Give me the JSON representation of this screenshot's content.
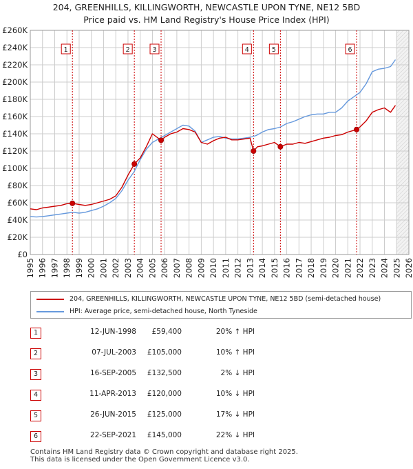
{
  "title_line1": "204, GREENHILLS, KILLINGWORTH, NEWCASTLE UPON TYNE, NE12 5BD",
  "title_line2": "Price paid vs. HM Land Registry's House Price Index (HPI)",
  "colors": {
    "property": "#cc0000",
    "hpi": "#6699dd",
    "marker": "#cc0000",
    "grid": "#cccccc",
    "vline": "#cc0000"
  },
  "chart_data": {
    "type": "line",
    "title": "Price paid vs. HM Land Registry's House Price Index (HPI)",
    "xlabel": "",
    "ylabel": "",
    "xlim": [
      1995,
      2026
    ],
    "ylim": [
      0,
      260000
    ],
    "y_ticks": [
      0,
      20000,
      40000,
      60000,
      80000,
      100000,
      120000,
      140000,
      160000,
      180000,
      200000,
      220000,
      240000,
      260000
    ],
    "y_tick_labels": [
      "£0",
      "£20K",
      "£40K",
      "£60K",
      "£80K",
      "£100K",
      "£120K",
      "£140K",
      "£160K",
      "£180K",
      "£200K",
      "£220K",
      "£240K",
      "£260K"
    ],
    "x_ticks": [
      1995,
      1996,
      1997,
      1998,
      1999,
      2000,
      2001,
      2002,
      2003,
      2004,
      2005,
      2006,
      2007,
      2008,
      2009,
      2010,
      2011,
      2012,
      2013,
      2014,
      2015,
      2016,
      2017,
      2018,
      2019,
      2020,
      2021,
      2022,
      2023,
      2024,
      2025,
      2026
    ],
    "forecast_start": 2025.0,
    "series": [
      {
        "name": "204, GREENHILLS, KILLINGWORTH, NEWCASTLE UPON TYNE, NE12 5BD (semi-detached house)",
        "color": "#cc0000",
        "x": [
          1995.0,
          1995.5,
          1996.0,
          1996.5,
          1997.0,
          1997.5,
          1998.0,
          1998.45,
          1999.0,
          1999.5,
          2000.0,
          2000.5,
          2001.0,
          2001.5,
          2002.0,
          2002.5,
          2003.0,
          2003.52,
          2004.0,
          2004.5,
          2005.0,
          2005.71,
          2006.0,
          2006.5,
          2007.0,
          2007.5,
          2008.0,
          2008.5,
          2009.0,
          2009.5,
          2010.0,
          2010.5,
          2011.0,
          2011.5,
          2012.0,
          2012.5,
          2013.0,
          2013.28,
          2013.6,
          2014.0,
          2014.5,
          2015.0,
          2015.48,
          2016.0,
          2016.5,
          2017.0,
          2017.5,
          2018.0,
          2018.5,
          2019.0,
          2019.5,
          2020.0,
          2020.5,
          2021.0,
          2021.72,
          2022.0,
          2022.5,
          2023.0,
          2023.5,
          2024.0,
          2024.5,
          2024.9
        ],
        "values": [
          53000,
          52000,
          54000,
          55000,
          56000,
          57000,
          59000,
          59400,
          58000,
          57000,
          58000,
          60000,
          62000,
          64000,
          68000,
          78000,
          92000,
          105000,
          112000,
          125000,
          140000,
          132500,
          136000,
          140000,
          142000,
          146000,
          145000,
          142000,
          130000,
          128000,
          132000,
          135000,
          136000,
          133000,
          133000,
          134000,
          135000,
          120000,
          125000,
          126000,
          128000,
          130000,
          125000,
          128000,
          128000,
          130000,
          129000,
          131000,
          133000,
          135000,
          136000,
          138000,
          139000,
          142000,
          145000,
          148000,
          155000,
          165000,
          168000,
          170000,
          165000,
          173000
        ]
      },
      {
        "name": "HPI: Average price, semi-detached house, North Tyneside",
        "color": "#6699dd",
        "x": [
          1995.0,
          1995.5,
          1996.0,
          1996.5,
          1997.0,
          1997.5,
          1998.0,
          1998.5,
          1999.0,
          1999.5,
          2000.0,
          2000.5,
          2001.0,
          2001.5,
          2002.0,
          2002.5,
          2003.0,
          2003.5,
          2004.0,
          2004.5,
          2005.0,
          2005.5,
          2006.0,
          2006.5,
          2007.0,
          2007.5,
          2008.0,
          2008.5,
          2009.0,
          2009.5,
          2010.0,
          2010.5,
          2011.0,
          2011.5,
          2012.0,
          2012.5,
          2013.0,
          2013.5,
          2014.0,
          2014.5,
          2015.0,
          2015.5,
          2016.0,
          2016.5,
          2017.0,
          2017.5,
          2018.0,
          2018.5,
          2019.0,
          2019.5,
          2020.0,
          2020.5,
          2021.0,
          2021.5,
          2022.0,
          2022.5,
          2023.0,
          2023.5,
          2024.0,
          2024.5,
          2024.9
        ],
        "values": [
          44000,
          43500,
          44000,
          45000,
          46000,
          47000,
          48000,
          49000,
          48000,
          49000,
          51000,
          53000,
          56000,
          60000,
          65000,
          74000,
          86000,
          96000,
          110000,
          122000,
          130000,
          134000,
          138000,
          142000,
          146000,
          150000,
          149000,
          143000,
          130000,
          133000,
          136000,
          137000,
          135000,
          134000,
          134000,
          135000,
          136000,
          138000,
          142000,
          145000,
          146000,
          148000,
          152000,
          154000,
          157000,
          160000,
          162000,
          163000,
          163000,
          165000,
          165000,
          170000,
          178000,
          183000,
          188000,
          198000,
          212000,
          215000,
          216000,
          218000,
          226000
        ]
      }
    ],
    "sales": [
      {
        "n": "1",
        "x": 1998.45,
        "price": 59400
      },
      {
        "n": "2",
        "x": 2003.52,
        "price": 105000
      },
      {
        "n": "3",
        "x": 2005.71,
        "price": 132500
      },
      {
        "n": "4",
        "x": 2013.28,
        "price": 120000
      },
      {
        "n": "5",
        "x": 2015.48,
        "price": 125000
      },
      {
        "n": "6",
        "x": 2021.72,
        "price": 145000
      }
    ]
  },
  "legend": {
    "property": "204, GREENHILLS, KILLINGWORTH, NEWCASTLE UPON TYNE, NE12 5BD (semi-detached house)",
    "hpi": "HPI: Average price, semi-detached house, North Tyneside"
  },
  "transactions": [
    {
      "n": "1",
      "date": "12-JUN-1998",
      "price": "£59,400",
      "hpi": "20% ↑ HPI"
    },
    {
      "n": "2",
      "date": "07-JUL-2003",
      "price": "£105,000",
      "hpi": "10% ↑ HPI"
    },
    {
      "n": "3",
      "date": "16-SEP-2005",
      "price": "£132,500",
      "hpi": "2% ↓ HPI"
    },
    {
      "n": "4",
      "date": "11-APR-2013",
      "price": "£120,000",
      "hpi": "10% ↓ HPI"
    },
    {
      "n": "5",
      "date": "26-JUN-2015",
      "price": "£125,000",
      "hpi": "17% ↓ HPI"
    },
    {
      "n": "6",
      "date": "22-SEP-2021",
      "price": "£145,000",
      "hpi": "22% ↓ HPI"
    }
  ],
  "footer_line1": "Contains HM Land Registry data © Crown copyright and database right 2025.",
  "footer_line2": "This data is licensed under the Open Government Licence v3.0."
}
